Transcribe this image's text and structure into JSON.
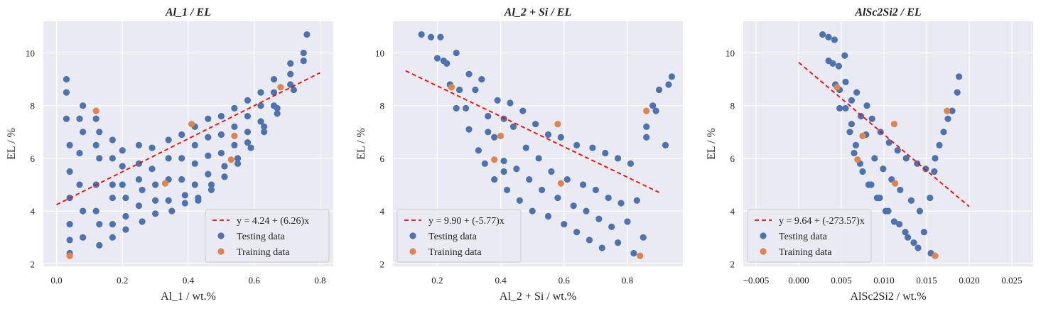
{
  "chart_data": [
    {
      "type": "scatter",
      "title": "Al_1 / EL",
      "xlabel": "Al_1 / wt.%",
      "ylabel": "EL / %",
      "xlim": [
        -0.04,
        0.84
      ],
      "ylim": [
        1.9,
        11.2
      ],
      "xticks": [
        0.0,
        0.2,
        0.4,
        0.6,
        0.8
      ],
      "xticklabels": [
        "0.0",
        "0.2",
        "0.4",
        "0.6",
        "0.8"
      ],
      "yticks": [
        2,
        4,
        6,
        8,
        10
      ],
      "yticklabels": [
        "2",
        "4",
        "6",
        "8",
        "10"
      ],
      "grid": true,
      "legend_position": "lower right",
      "fit": {
        "label": "y = 4.24 + (6.26)x",
        "intercept": 4.24,
        "slope": 6.26,
        "x_range": [
          0.0,
          0.8
        ],
        "color": "#ff0000"
      },
      "series": [
        {
          "name": "Testing data",
          "color": "#4c72b0",
          "x": [
            0.03,
            0.03,
            0.03,
            0.04,
            0.04,
            0.04,
            0.04,
            0.04,
            0.04,
            0.07,
            0.07,
            0.07,
            0.08,
            0.08,
            0.08,
            0.08,
            0.12,
            0.12,
            0.12,
            0.12,
            0.13,
            0.13,
            0.13,
            0.13,
            0.17,
            0.17,
            0.17,
            0.17,
            0.17,
            0.17,
            0.2,
            0.2,
            0.2,
            0.21,
            0.21,
            0.21,
            0.25,
            0.25,
            0.25,
            0.25,
            0.26,
            0.26,
            0.29,
            0.29,
            0.3,
            0.3,
            0.3,
            0.34,
            0.34,
            0.34,
            0.34,
            0.35,
            0.38,
            0.38,
            0.38,
            0.39,
            0.39,
            0.42,
            0.42,
            0.42,
            0.42,
            0.43,
            0.43,
            0.46,
            0.46,
            0.46,
            0.46,
            0.47,
            0.47,
            0.5,
            0.5,
            0.5,
            0.51,
            0.51,
            0.54,
            0.54,
            0.54,
            0.55,
            0.55,
            0.58,
            0.58,
            0.58,
            0.58,
            0.59,
            0.62,
            0.62,
            0.62,
            0.63,
            0.63,
            0.66,
            0.66,
            0.66,
            0.67,
            0.67,
            0.71,
            0.71,
            0.71,
            0.72,
            0.75,
            0.75,
            0.76
          ],
          "y": [
            9.0,
            8.5,
            7.5,
            6.5,
            5.5,
            4.5,
            3.5,
            2.9,
            2.4,
            7.5,
            6.2,
            5.0,
            8.0,
            7.0,
            4.0,
            3.0,
            7.5,
            6.5,
            5.0,
            4.0,
            7.0,
            6.0,
            3.5,
            2.7,
            6.7,
            6.0,
            5.0,
            4.5,
            3.5,
            3.0,
            6.3,
            5.7,
            5.0,
            4.5,
            3.8,
            3.3,
            6.5,
            5.8,
            5.2,
            4.2,
            4.8,
            3.6,
            6.4,
            5.6,
            5.0,
            4.4,
            3.9,
            6.7,
            6.0,
            5.2,
            4.4,
            4.0,
            6.9,
            6.0,
            5.2,
            4.6,
            4.3,
            7.2,
            6.5,
            5.8,
            5.0,
            4.5,
            4.4,
            7.5,
            6.8,
            6.1,
            5.4,
            5.0,
            4.8,
            7.6,
            6.9,
            6.2,
            5.7,
            5.3,
            7.9,
            7.2,
            6.5,
            6.0,
            5.8,
            8.2,
            7.6,
            7.0,
            6.6,
            6.4,
            8.5,
            8.0,
            7.4,
            7.2,
            7.0,
            9.0,
            8.5,
            8.0,
            7.9,
            7.7,
            9.6,
            9.2,
            8.8,
            8.6,
            10.0,
            9.7,
            10.7
          ]
        },
        {
          "name": "Training data",
          "color": "#dd8452",
          "x": [
            0.04,
            0.12,
            0.33,
            0.41,
            0.53,
            0.54,
            0.68
          ],
          "y": [
            2.3,
            7.8,
            5.05,
            7.3,
            5.95,
            6.85,
            8.7
          ]
        }
      ]
    },
    {
      "type": "scatter",
      "title": "Al_2 + Si / EL",
      "xlabel": "Al_2 + Si / wt.%",
      "ylabel": "EL / %",
      "xlim": [
        0.06,
        0.975
      ],
      "ylim": [
        1.9,
        11.2
      ],
      "xticks": [
        0.2,
        0.4,
        0.6,
        0.8
      ],
      "xticklabels": [
        "0.2",
        "0.4",
        "0.6",
        "0.8"
      ],
      "yticks": [
        2,
        4,
        6,
        8,
        10
      ],
      "yticklabels": [
        "2",
        "4",
        "6",
        "8",
        "10"
      ],
      "grid": true,
      "legend_position": "lower left",
      "fit": {
        "label": "y = 9.90 + (-5.77)x",
        "intercept": 9.9,
        "slope": -5.77,
        "x_range": [
          0.1,
          0.9
        ],
        "color": "#ff0000"
      },
      "series": [
        {
          "name": "Testing data",
          "color": "#4c72b0",
          "x": [
            0.15,
            0.18,
            0.21,
            0.22,
            0.2,
            0.23,
            0.26,
            0.24,
            0.27,
            0.3,
            0.26,
            0.29,
            0.32,
            0.34,
            0.36,
            0.3,
            0.33,
            0.36,
            0.39,
            0.41,
            0.35,
            0.38,
            0.41,
            0.43,
            0.38,
            0.41,
            0.44,
            0.47,
            0.42,
            0.45,
            0.48,
            0.51,
            0.46,
            0.49,
            0.52,
            0.55,
            0.5,
            0.53,
            0.56,
            0.59,
            0.55,
            0.58,
            0.61,
            0.64,
            0.6,
            0.63,
            0.66,
            0.69,
            0.64,
            0.67,
            0.7,
            0.73,
            0.68,
            0.71,
            0.74,
            0.77,
            0.72,
            0.75,
            0.78,
            0.81,
            0.77,
            0.8,
            0.83,
            0.86,
            0.82,
            0.85,
            0.86,
            0.89,
            0.92,
            0.88,
            0.9,
            0.93,
            0.94
          ],
          "y": [
            10.7,
            10.6,
            10.6,
            9.7,
            9.8,
            9.6,
            10.0,
            8.8,
            8.6,
            9.2,
            7.9,
            7.9,
            8.6,
            9.0,
            7.0,
            7.1,
            6.3,
            7.6,
            8.2,
            5.5,
            5.8,
            6.8,
            7.5,
            8.1,
            5.2,
            5.9,
            7.2,
            7.8,
            4.8,
            5.6,
            6.4,
            7.3,
            4.4,
            5.2,
            6.0,
            6.9,
            4.0,
            4.8,
            5.5,
            6.8,
            3.8,
            4.5,
            5.2,
            6.5,
            3.5,
            4.2,
            5.0,
            6.4,
            3.2,
            4.0,
            4.8,
            6.2,
            2.9,
            3.7,
            4.5,
            6.0,
            2.6,
            3.4,
            4.3,
            5.8,
            2.8,
            3.6,
            4.4,
            6.8,
            2.4,
            3.0,
            7.2,
            7.8,
            6.5,
            8.0,
            8.6,
            8.8,
            9.1
          ]
        },
        {
          "name": "Training data",
          "color": "#dd8452",
          "x": [
            0.245,
            0.38,
            0.4,
            0.58,
            0.59,
            0.84,
            0.86
          ],
          "y": [
            8.7,
            5.95,
            6.85,
            7.3,
            5.05,
            2.3,
            7.8
          ]
        }
      ]
    },
    {
      "type": "scatter",
      "title": "AlSc2Si2 / EL",
      "xlabel": "AlSc2Si2 / wt.%",
      "ylabel": "EL / %",
      "xlim": [
        -0.0065,
        0.0275
      ],
      "ylim": [
        1.9,
        11.2
      ],
      "xticks": [
        -0.005,
        0.0,
        0.005,
        0.01,
        0.015,
        0.02,
        0.025
      ],
      "xticklabels": [
        "−0.005",
        "0.000",
        "0.005",
        "0.010",
        "0.015",
        "0.020",
        "0.025"
      ],
      "yticks": [
        2,
        4,
        6,
        8,
        10
      ],
      "yticklabels": [
        "2",
        "4",
        "6",
        "8",
        "10"
      ],
      "grid": true,
      "legend_position": "lower left",
      "fit": {
        "label": "y = 9.64 + (-273.57)x",
        "intercept": 9.64,
        "slope": -273.57,
        "x_range": [
          0.0,
          0.02
        ],
        "color": "#ff0000"
      },
      "series": [
        {
          "name": "Testing data",
          "color": "#4c72b0",
          "x": [
            0.0028,
            0.0035,
            0.0042,
            0.0035,
            0.004,
            0.0047,
            0.0054,
            0.0043,
            0.0048,
            0.0055,
            0.0062,
            0.0048,
            0.0055,
            0.0062,
            0.0068,
            0.006,
            0.0067,
            0.0073,
            0.008,
            0.0065,
            0.0072,
            0.0079,
            0.0086,
            0.0075,
            0.0082,
            0.0089,
            0.0096,
            0.0085,
            0.0092,
            0.0099,
            0.0106,
            0.0095,
            0.0102,
            0.0109,
            0.0116,
            0.0105,
            0.0112,
            0.0119,
            0.0126,
            0.0118,
            0.0125,
            0.0132,
            0.0139,
            0.0128,
            0.0135,
            0.0142,
            0.0149,
            0.014,
            0.0147,
            0.0154,
            0.0159,
            0.0155,
            0.016,
            0.0165,
            0.017,
            0.0175,
            0.018,
            0.0186,
            0.0188
          ],
          "y": [
            10.7,
            10.6,
            10.5,
            9.7,
            9.6,
            9.5,
            9.9,
            8.8,
            8.6,
            8.9,
            8.2,
            7.9,
            7.9,
            7.3,
            8.5,
            7.0,
            6.5,
            7.6,
            8.0,
            6.2,
            5.8,
            6.9,
            7.5,
            5.5,
            5.0,
            6.0,
            7.0,
            5.0,
            4.5,
            5.6,
            6.6,
            4.5,
            4.0,
            5.2,
            6.3,
            4.0,
            3.6,
            4.8,
            6.0,
            3.5,
            3.2,
            4.4,
            5.8,
            3.0,
            2.8,
            4.0,
            5.6,
            2.6,
            3.2,
            4.5,
            5.5,
            2.4,
            6.0,
            6.5,
            7.0,
            7.5,
            7.8,
            8.5,
            9.1
          ]
        },
        {
          "name": "Training data",
          "color": "#dd8452",
          "x": [
            0.0045,
            0.0069,
            0.0075,
            0.0112,
            0.0113,
            0.016,
            0.0174
          ],
          "y": [
            8.7,
            5.95,
            6.85,
            7.3,
            5.05,
            2.3,
            7.8
          ]
        }
      ]
    }
  ]
}
